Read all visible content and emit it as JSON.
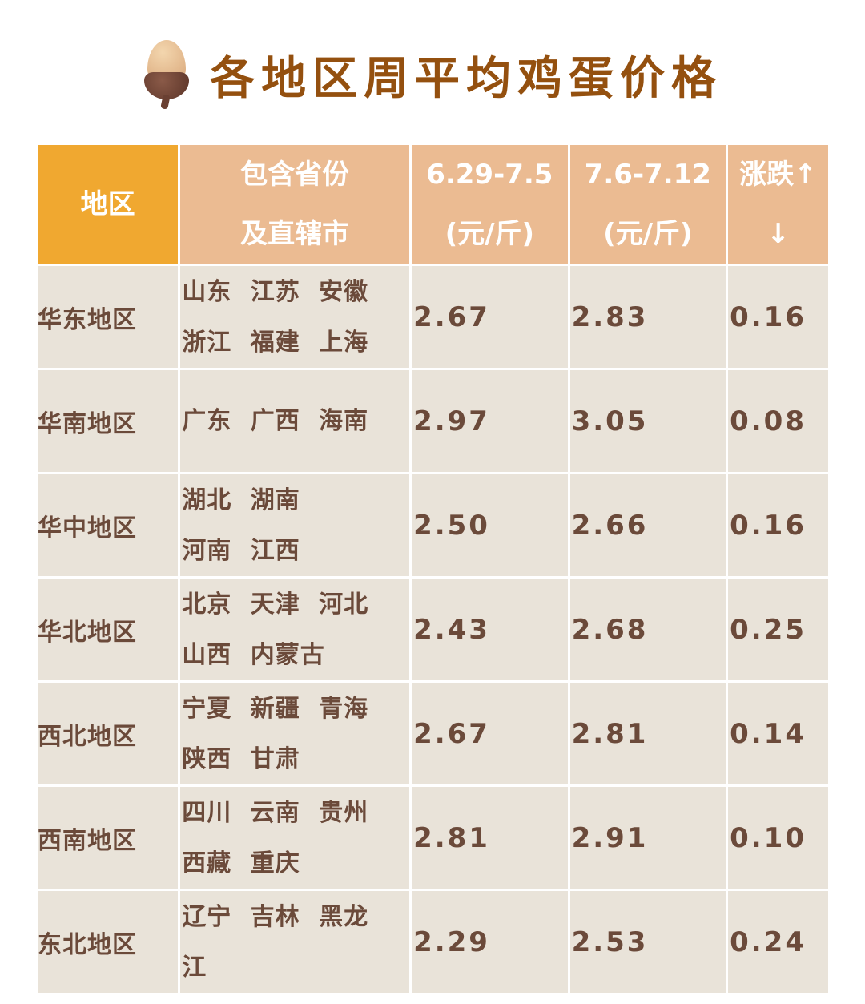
{
  "title": "各地区周平均鸡蛋价格",
  "title_icon": "acorn-icon",
  "colors": {
    "title": "#94500f",
    "header_first": "#F0A830",
    "header": "#EBBB92",
    "body": "#E9E3D9",
    "text": "#6B4A3A"
  },
  "headers": [
    {
      "line1": "地区",
      "line2": ""
    },
    {
      "line1": "包含省份",
      "line2": "及直辖市"
    },
    {
      "line1": "6.29-7.5",
      "line2": "(元/斤)"
    },
    {
      "line1": "7.6-7.12",
      "line2": "(元/斤)"
    },
    {
      "line1": "涨跌↑",
      "line2": "↓"
    }
  ],
  "rows": [
    {
      "region": "华东地区",
      "provinces": [
        "山东 江苏 安徽",
        "浙江 福建 上海"
      ],
      "prev": "2.67",
      "curr": "2.83",
      "change": "0.16"
    },
    {
      "region": "华南地区",
      "provinces": [
        "广东 广西 海南",
        ""
      ],
      "prev": "2.97",
      "curr": "3.05",
      "change": "0.08"
    },
    {
      "region": "华中地区",
      "provinces": [
        "湖北 湖南",
        "河南 江西"
      ],
      "prev": "2.50",
      "curr": "2.66",
      "change": "0.16"
    },
    {
      "region": "华北地区",
      "provinces": [
        "北京 天津 河北",
        "山西 内蒙古"
      ],
      "prev": "2.43",
      "curr": "2.68",
      "change": "0.25"
    },
    {
      "region": "西北地区",
      "provinces": [
        "宁夏 新疆 青海",
        "陕西 甘肃"
      ],
      "prev": "2.67",
      "curr": "2.81",
      "change": "0.14"
    },
    {
      "region": "西南地区",
      "provinces": [
        "四川 云南 贵州",
        "西藏 重庆"
      ],
      "prev": "2.81",
      "curr": "2.91",
      "change": "0.10"
    },
    {
      "region": "东北地区",
      "provinces": [
        "辽宁 吉林 黑龙",
        "江"
      ],
      "prev": "2.29",
      "curr": "2.53",
      "change": "0.24"
    }
  ]
}
